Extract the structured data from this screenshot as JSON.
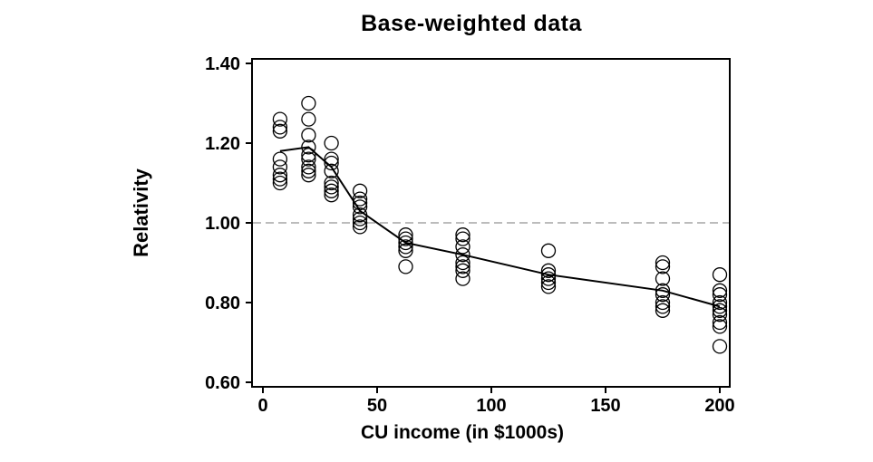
{
  "figure": {
    "title": "Base-weighted data",
    "background_color": "#ffffff"
  },
  "chart_data": {
    "type": "scatter",
    "title": "Base-weighted data",
    "xlabel": "CU income (in $1000s)",
    "ylabel": "Relativity",
    "xlim": [
      -4.8,
      204.4
    ],
    "ylim": [
      0.589,
      1.411
    ],
    "grid": false,
    "legend": null,
    "x_axis": {
      "ticks": [
        {
          "value": 0,
          "label": "0"
        },
        {
          "value": 50,
          "label": "50"
        },
        {
          "value": 100,
          "label": "100"
        },
        {
          "value": 150,
          "label": "150"
        },
        {
          "value": 200,
          "label": "200"
        }
      ]
    },
    "y_axis": {
      "ticks": [
        {
          "value": 0.6,
          "label": "0.60"
        },
        {
          "value": 0.8,
          "label": "0.80"
        },
        {
          "value": 1.0,
          "label": "1.00"
        },
        {
          "value": 1.2,
          "label": "1.20"
        },
        {
          "value": 1.4,
          "label": "1.40"
        }
      ]
    },
    "reference_line": {
      "y": 1.0,
      "style": "dashed",
      "color": "#a6a6a6"
    },
    "scatter_series": {
      "name": "relativity-observations",
      "marker": "open-circle",
      "color": "#000000",
      "groups": [
        {
          "x": 7.5,
          "y_values": [
            1.26,
            1.24,
            1.23,
            1.16,
            1.14,
            1.12,
            1.11,
            1.1
          ]
        },
        {
          "x": 20,
          "y_values": [
            1.3,
            1.26,
            1.22,
            1.19,
            1.17,
            1.16,
            1.14,
            1.13,
            1.12
          ]
        },
        {
          "x": 30,
          "y_values": [
            1.2,
            1.16,
            1.15,
            1.13,
            1.1,
            1.09,
            1.08,
            1.07
          ]
        },
        {
          "x": 42.5,
          "y_values": [
            1.08,
            1.06,
            1.05,
            1.04,
            1.02,
            1.01,
            1.0,
            0.99
          ]
        },
        {
          "x": 62.5,
          "y_values": [
            0.97,
            0.96,
            0.95,
            0.94,
            0.93,
            0.89
          ]
        },
        {
          "x": 87.5,
          "y_values": [
            0.97,
            0.96,
            0.94,
            0.92,
            0.9,
            0.89,
            0.88,
            0.86
          ]
        },
        {
          "x": 125,
          "y_values": [
            0.93,
            0.88,
            0.87,
            0.86,
            0.85,
            0.84
          ]
        },
        {
          "x": 175,
          "y_values": [
            0.9,
            0.89,
            0.86,
            0.83,
            0.82,
            0.8,
            0.79,
            0.78
          ]
        },
        {
          "x": 200,
          "y_values": [
            0.87,
            0.83,
            0.82,
            0.8,
            0.79,
            0.78,
            0.77,
            0.75,
            0.74,
            0.69
          ]
        }
      ]
    },
    "line_series": {
      "name": "mean-trend-line",
      "color": "#000000",
      "points": [
        [
          7.5,
          1.18
        ],
        [
          20,
          1.19
        ],
        [
          30,
          1.14
        ],
        [
          42.5,
          1.03
        ],
        [
          62.5,
          0.95
        ],
        [
          87.5,
          0.92
        ],
        [
          125,
          0.87
        ],
        [
          175,
          0.83
        ],
        [
          200,
          0.79
        ]
      ]
    }
  }
}
